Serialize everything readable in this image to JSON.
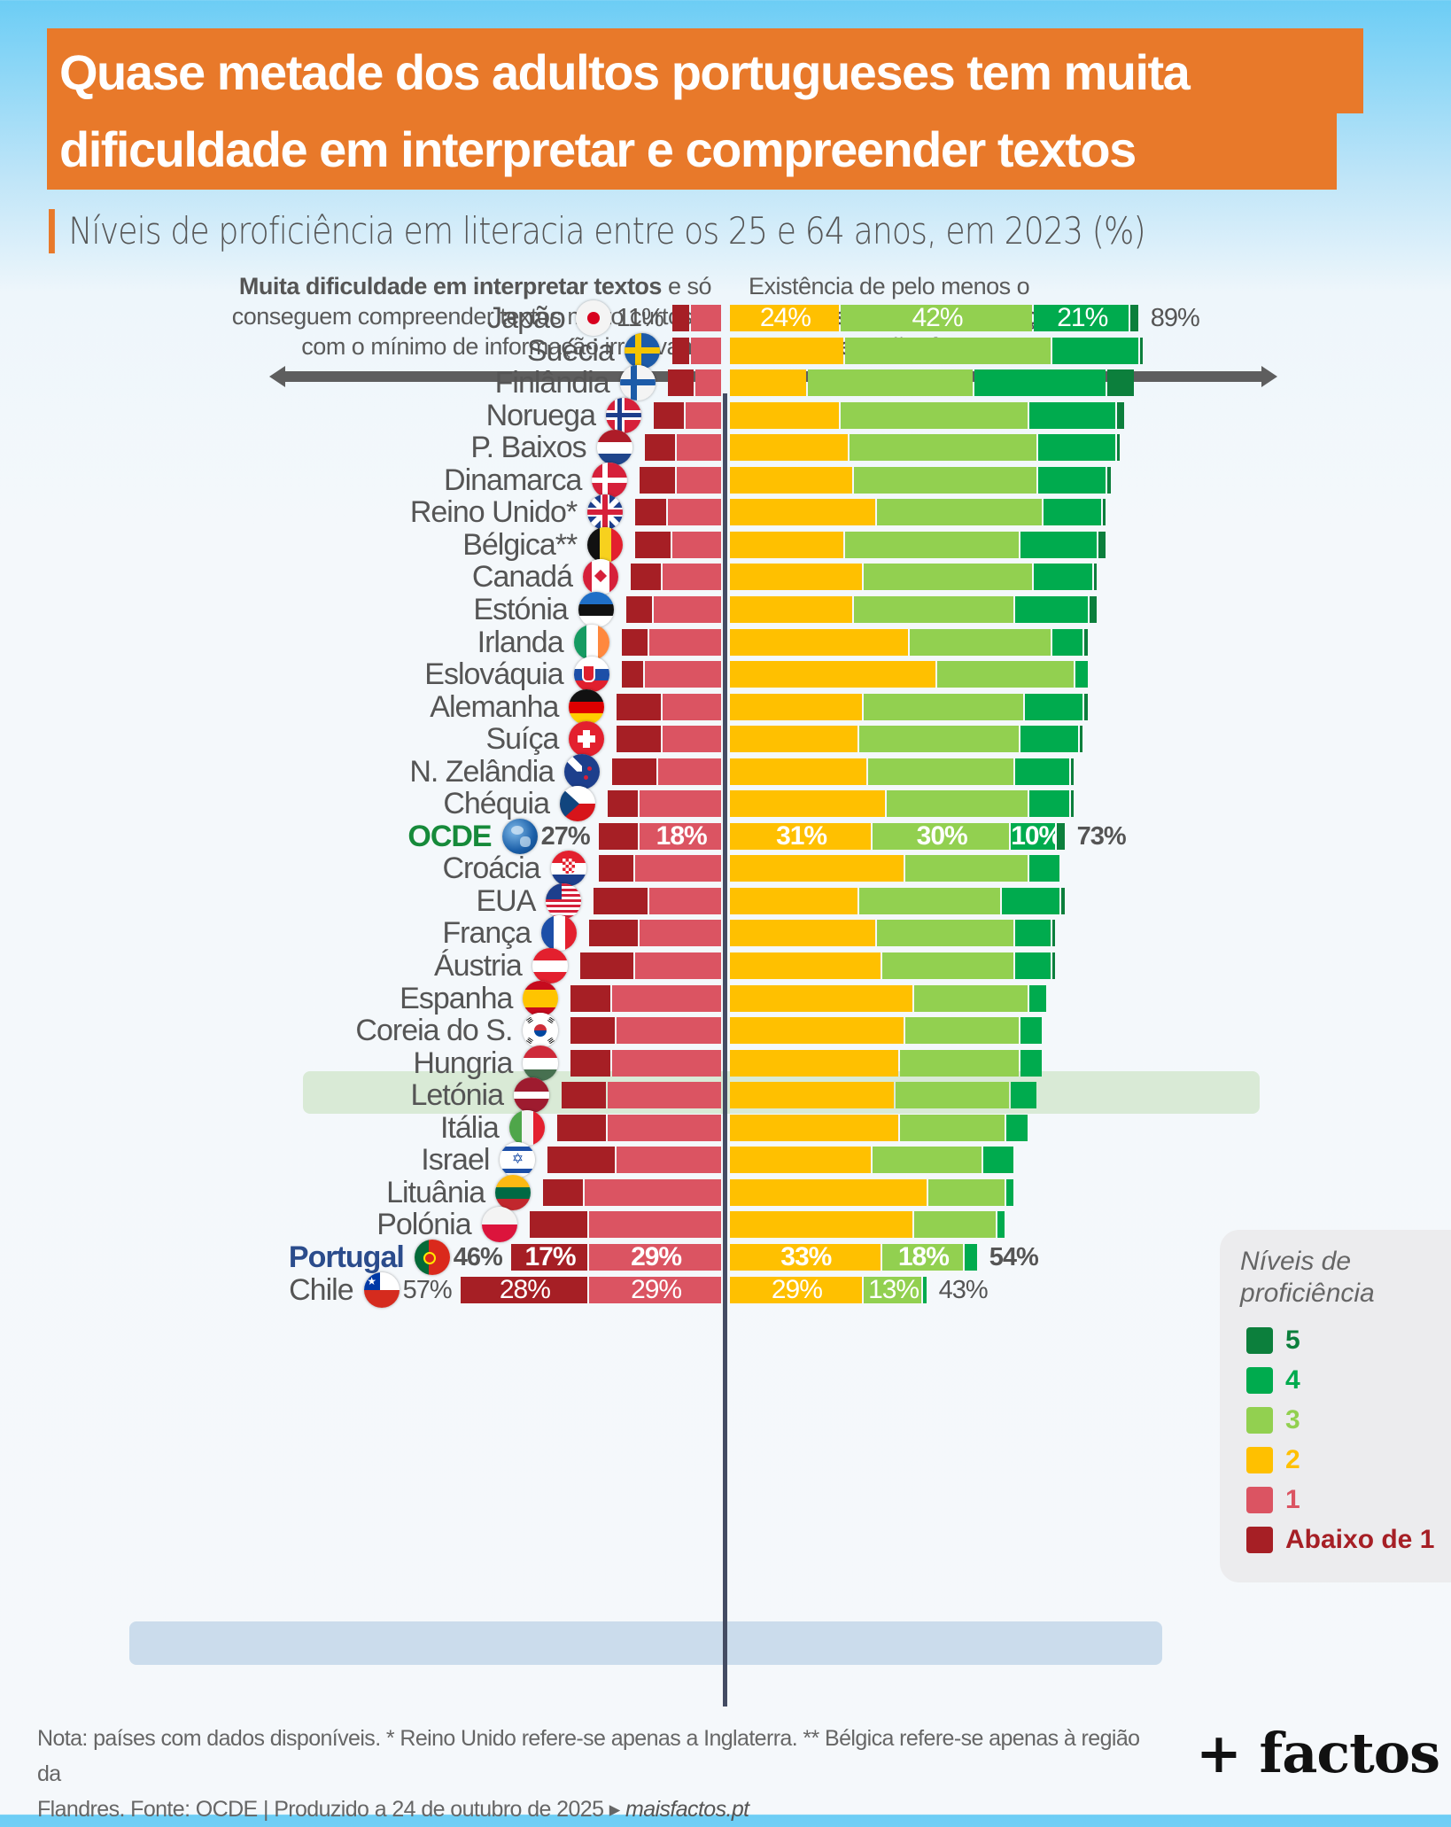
{
  "header": {
    "title_line1": "Quase metade dos adultos portugueses tem muita",
    "title_line2": "dificuldade em interpretar e compreender textos",
    "subtitle": "Níveis de proficiência em literacia entre os 25 e 64 anos, em 2023 (%)"
  },
  "annotations": {
    "left_bold": "Muita dificuldade em interpretar textos",
    "left_rest1": " e só",
    "left_line2": "conseguem compreender textos muito curtos e",
    "left_line3": "com o mínimo de informação irrelevante",
    "right_line1": "Existência de pelo menos o",
    "right_line2": "nível básico na interpretação",
    "right_line3": "e compreensão de textos"
  },
  "legend": {
    "title_line1": "Níveis de",
    "title_line2": "proficiência",
    "items": [
      {
        "label": "5",
        "color": "#0c7f3c"
      },
      {
        "label": "4",
        "color": "#00ab4e"
      },
      {
        "label": "3",
        "color": "#92d050"
      },
      {
        "label": "2",
        "color": "#ffc000"
      },
      {
        "label": "1",
        "color": "#db5462"
      },
      {
        "label": "Abaixo de 1",
        "color": "#a61f25"
      }
    ]
  },
  "footer": {
    "note_line1": "Nota: países com dados disponíveis. * Reino Unido refere-se apenas a Inglaterra. ** Bélgica refere-se apenas à região da",
    "note_line2": "Flandres. Fonte: OCDE | Produzido a 24 de outubro de 2025 ▸ ",
    "site": "maisfactos.pt",
    "brand": "+ factos"
  },
  "chart_data": {
    "type": "bar",
    "orientation": "horizontal-diverging-stacked",
    "title": "Quase metade dos adultos portugueses tem muita dificuldade em interpretar e compreender textos",
    "subtitle": "Níveis de proficiência em literacia entre os 25 e 64 anos, em 2023 (%)",
    "series_names": [
      "Abaixo de 1",
      "1",
      "2",
      "3",
      "4",
      "5"
    ],
    "colors": {
      "below1": "#a61f25",
      "l1": "#db5462",
      "l2": "#ffc000",
      "l3": "#92d050",
      "l4": "#00ab4e",
      "l5": "#0c7f3c"
    },
    "left_stack": [
      "below1",
      "l1"
    ],
    "right_stack": [
      "l2",
      "l3",
      "l4",
      "l5"
    ],
    "legend_position": "right",
    "rows": [
      {
        "country": "Japão",
        "flag": "jp",
        "below1": 4,
        "l1": 7,
        "l2": 24,
        "l3": 42,
        "l4": 21,
        "l5": 2,
        "left_total": "11%",
        "right_total": "89%",
        "labels": {
          "l2": "24%",
          "l3": "42%",
          "l4": "21%"
        }
      },
      {
        "country": "Suécia",
        "flag": "se",
        "below1": 4,
        "l1": 7,
        "l2": 25,
        "l3": 45,
        "l4": 19,
        "l5": 1
      },
      {
        "country": "Finlândia",
        "flag": "fi",
        "below1": 6,
        "l1": 6,
        "l2": 17,
        "l3": 36,
        "l4": 29,
        "l5": 6
      },
      {
        "country": "Noruega",
        "flag": "no",
        "below1": 7,
        "l1": 8,
        "l2": 24,
        "l3": 41,
        "l4": 19,
        "l5": 2
      },
      {
        "country": "P. Baixos",
        "flag": "nl",
        "below1": 7,
        "l1": 10,
        "l2": 26,
        "l3": 41,
        "l4": 17,
        "l5": 1
      },
      {
        "country": "Dinamarca",
        "flag": "dk",
        "below1": 8,
        "l1": 10,
        "l2": 27,
        "l3": 40,
        "l4": 15,
        "l5": 1
      },
      {
        "country": "Reino Unido*",
        "flag": "gb",
        "below1": 7,
        "l1": 12,
        "l2": 32,
        "l3": 36,
        "l4": 13,
        "l5": 1
      },
      {
        "country": "Bélgica**",
        "flag": "be",
        "below1": 8,
        "l1": 11,
        "l2": 25,
        "l3": 38,
        "l4": 17,
        "l5": 2
      },
      {
        "country": "Canadá",
        "flag": "ca",
        "below1": 7,
        "l1": 13,
        "l2": 29,
        "l3": 37,
        "l4": 13,
        "l5": 1
      },
      {
        "country": "Estónia",
        "flag": "ee",
        "below1": 6,
        "l1": 15,
        "l2": 27,
        "l3": 35,
        "l4": 16,
        "l5": 2
      },
      {
        "country": "Irlanda",
        "flag": "ie",
        "below1": 6,
        "l1": 16,
        "l2": 39,
        "l3": 31,
        "l4": 7,
        "l5": 1
      },
      {
        "country": "Eslováquia",
        "flag": "sk",
        "below1": 5,
        "l1": 17,
        "l2": 45,
        "l3": 30,
        "l4": 3,
        "l5": 0
      },
      {
        "country": "Alemanha",
        "flag": "de",
        "below1": 10,
        "l1": 13,
        "l2": 29,
        "l3": 35,
        "l4": 13,
        "l5": 1
      },
      {
        "country": "Suíça",
        "flag": "ch",
        "below1": 10,
        "l1": 13,
        "l2": 28,
        "l3": 35,
        "l4": 13,
        "l5": 1
      },
      {
        "country": "N. Zelândia",
        "flag": "nz",
        "below1": 10,
        "l1": 14,
        "l2": 30,
        "l3": 32,
        "l4": 12,
        "l5": 1
      },
      {
        "country": "Chéquia",
        "flag": "cz",
        "below1": 7,
        "l1": 18,
        "l2": 34,
        "l3": 31,
        "l4": 9,
        "l5": 1
      },
      {
        "country": "OCDE",
        "flag": "oecd",
        "highlight": "ocde",
        "below1": 9,
        "l1": 18,
        "l2": 31,
        "l3": 30,
        "l4": 10,
        "l5": 2,
        "left_total": "27%",
        "right_total": "73%",
        "labels": {
          "l1": "18%",
          "l2": "31%",
          "l3": "30%",
          "l4": "10%"
        }
      },
      {
        "country": "Croácia",
        "flag": "hr",
        "below1": 8,
        "l1": 19,
        "l2": 38,
        "l3": 27,
        "l4": 7,
        "l5": 0
      },
      {
        "country": "EUA",
        "flag": "us",
        "below1": 12,
        "l1": 16,
        "l2": 28,
        "l3": 31,
        "l4": 13,
        "l5": 1
      },
      {
        "country": "França",
        "flag": "fr",
        "below1": 11,
        "l1": 18,
        "l2": 32,
        "l3": 30,
        "l4": 8,
        "l5": 1
      },
      {
        "country": "Áustria",
        "flag": "at",
        "below1": 12,
        "l1": 19,
        "l2": 33,
        "l3": 29,
        "l4": 8,
        "l5": 1
      },
      {
        "country": "Espanha",
        "flag": "es",
        "below1": 9,
        "l1": 24,
        "l2": 40,
        "l3": 25,
        "l4": 4,
        "l5": 0
      },
      {
        "country": "Coreia do S.",
        "flag": "kr",
        "below1": 10,
        "l1": 23,
        "l2": 38,
        "l3": 25,
        "l4": 5,
        "l5": 0
      },
      {
        "country": "Hungria",
        "flag": "hu",
        "below1": 9,
        "l1": 24,
        "l2": 37,
        "l3": 26,
        "l4": 5,
        "l5": 0
      },
      {
        "country": "Letónia",
        "flag": "lv",
        "below1": 10,
        "l1": 25,
        "l2": 36,
        "l3": 25,
        "l4": 6,
        "l5": 0
      },
      {
        "country": "Itália",
        "flag": "it",
        "below1": 11,
        "l1": 25,
        "l2": 37,
        "l3": 23,
        "l4": 5,
        "l5": 0
      },
      {
        "country": "Israel",
        "flag": "il",
        "below1": 15,
        "l1": 23,
        "l2": 31,
        "l3": 24,
        "l4": 7,
        "l5": 0
      },
      {
        "country": "Lituânia",
        "flag": "lt",
        "below1": 9,
        "l1": 30,
        "l2": 43,
        "l3": 17,
        "l4": 2,
        "l5": 0
      },
      {
        "country": "Polónia",
        "flag": "pl",
        "below1": 13,
        "l1": 29,
        "l2": 40,
        "l3": 18,
        "l4": 2,
        "l5": 0
      },
      {
        "country": "Portugal",
        "flag": "pt",
        "highlight": "pt",
        "below1": 17,
        "l1": 29,
        "l2": 33,
        "l3": 18,
        "l4": 3,
        "l5": 0,
        "left_total": "46%",
        "right_total": "54%",
        "labels": {
          "below1": "17%",
          "l1": "29%",
          "l2": "33%",
          "l3": "18%"
        }
      },
      {
        "country": "Chile",
        "flag": "cl",
        "below1": 28,
        "l1": 29,
        "l2": 29,
        "l3": 13,
        "l4": 1,
        "l5": 0,
        "left_total": "57%",
        "right_total": "43%",
        "labels": {
          "below1": "28%",
          "l1": "29%",
          "l2": "29%",
          "l3": "13%"
        }
      }
    ]
  }
}
